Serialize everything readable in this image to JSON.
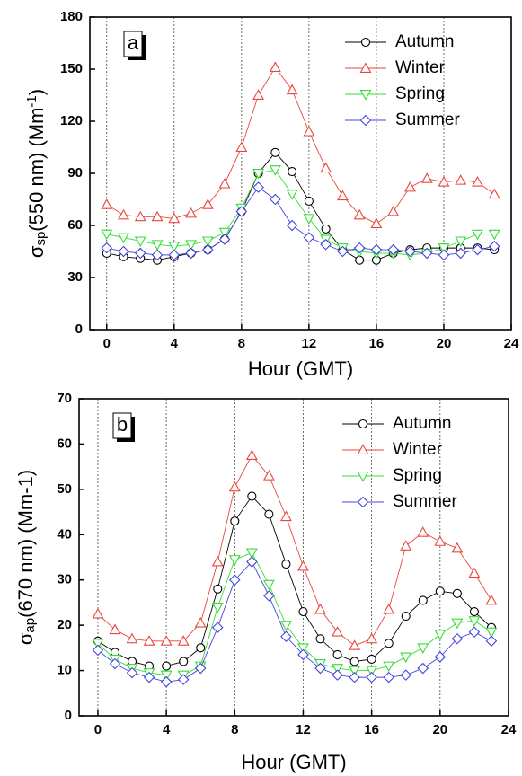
{
  "chart_data": [
    {
      "type": "line",
      "panel_label": "a",
      "ylabel": {
        "symbol": "σ",
        "sub": "sp",
        "text": "(550 nm) (Mm",
        "sup": "-1",
        "end": ")"
      },
      "xlabel": "Hour (GMT)",
      "x": [
        0,
        1,
        2,
        3,
        4,
        5,
        6,
        7,
        8,
        9,
        10,
        11,
        12,
        13,
        14,
        15,
        16,
        17,
        18,
        19,
        20,
        21,
        22,
        23
      ],
      "xlim": [
        -1,
        24
      ],
      "xticks": [
        0,
        4,
        8,
        12,
        16,
        20,
        24
      ],
      "ylim": [
        0,
        180
      ],
      "yticks": [
        0,
        30,
        60,
        90,
        120,
        150,
        180
      ],
      "grid": "x-dashed",
      "legend": "upper-right",
      "series": [
        {
          "name": "Autumn",
          "color": "#000000",
          "marker": "circle",
          "values": [
            44,
            42,
            41,
            40,
            42,
            44,
            46,
            52,
            68,
            90,
            102,
            91,
            74,
            58,
            46,
            40,
            40,
            44,
            46,
            47,
            47,
            47,
            47,
            46
          ]
        },
        {
          "name": "Winter",
          "color": "#e8453c",
          "marker": "triangle-up",
          "values": [
            72,
            66,
            65,
            65,
            64,
            67,
            72,
            84,
            105,
            135,
            151,
            138,
            114,
            93,
            77,
            66,
            61,
            68,
            82,
            87,
            85,
            86,
            85,
            78
          ]
        },
        {
          "name": "Spring",
          "color": "#33dd33",
          "marker": "triangle-down",
          "values": [
            55,
            53,
            51,
            49,
            48,
            49,
            51,
            56,
            70,
            90,
            92,
            78,
            64,
            52,
            47,
            45,
            44,
            44,
            43,
            44,
            47,
            51,
            55,
            55
          ]
        },
        {
          "name": "Summer",
          "color": "#4444dd",
          "marker": "diamond",
          "values": [
            47,
            45,
            44,
            43,
            43,
            44,
            46,
            52,
            68,
            82,
            75,
            60,
            53,
            49,
            45,
            47,
            46,
            46,
            45,
            44,
            43,
            44,
            46,
            48
          ]
        }
      ]
    },
    {
      "type": "line",
      "panel_label": "b",
      "ylabel": {
        "symbol": "σ",
        "sub": "ap",
        "text": "(670 nm) (Mm-1)"
      },
      "xlabel": "Hour (GMT)",
      "x": [
        0,
        1,
        2,
        3,
        4,
        5,
        6,
        7,
        8,
        9,
        10,
        11,
        12,
        13,
        14,
        15,
        16,
        17,
        18,
        19,
        20,
        21,
        22,
        23
      ],
      "xlim": [
        -1.1,
        24
      ],
      "xticks": [
        0,
        4,
        8,
        12,
        16,
        20,
        24
      ],
      "ylim": [
        0,
        70
      ],
      "yticks": [
        0,
        10,
        20,
        30,
        40,
        50,
        60,
        70
      ],
      "grid": "x-dashed",
      "legend": "upper-right",
      "series": [
        {
          "name": "Autumn",
          "color": "#000000",
          "marker": "circle",
          "values": [
            16.5,
            14,
            12,
            11,
            11,
            12,
            15,
            28,
            43,
            48.5,
            44.5,
            33.5,
            23,
            17,
            13.5,
            12,
            12.5,
            16,
            22,
            25.5,
            27.5,
            27,
            23,
            19.5
          ]
        },
        {
          "name": "Winter",
          "color": "#e8453c",
          "marker": "triangle-up",
          "values": [
            22.5,
            19,
            17,
            16.5,
            16.5,
            16.5,
            20.5,
            34,
            50.5,
            57.5,
            53,
            44,
            33,
            23.5,
            18.5,
            15.5,
            17,
            23.5,
            37.5,
            40.5,
            38.5,
            37,
            31.5,
            25.5
          ]
        },
        {
          "name": "Spring",
          "color": "#33dd33",
          "marker": "triangle-down",
          "values": [
            16,
            12.5,
            10.5,
            9.5,
            9,
            9,
            11,
            24,
            34.5,
            36,
            29,
            20,
            15,
            11.5,
            10.5,
            10,
            10,
            11,
            13,
            15,
            18,
            20.5,
            21,
            18.5
          ]
        },
        {
          "name": "Summer",
          "color": "#4444dd",
          "marker": "diamond",
          "values": [
            14.5,
            11.5,
            9.5,
            8.5,
            7.5,
            8,
            10.5,
            19.5,
            30,
            34,
            26.5,
            17.5,
            13.5,
            10.5,
            9,
            8.5,
            8.5,
            8.5,
            9,
            10.5,
            13,
            17,
            18.5,
            16.5
          ]
        }
      ]
    }
  ]
}
